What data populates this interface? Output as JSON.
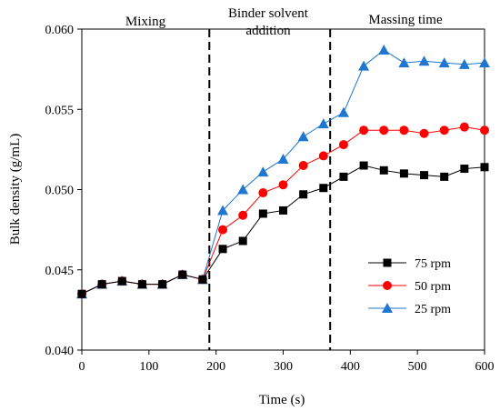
{
  "chart_data": {
    "type": "line",
    "xlabel": "Time (s)",
    "ylabel": "Bulk density (g/mL)",
    "xlim": [
      0,
      600
    ],
    "ylim": [
      0.04,
      0.06
    ],
    "xticks": [
      "0",
      "100",
      "200",
      "300",
      "400",
      "500",
      "600"
    ],
    "yticks": [
      "0.040",
      "0.045",
      "0.050",
      "0.055",
      "0.060"
    ],
    "grid": false,
    "legend_position": "bottom-right",
    "phase_dividers": [
      190,
      370
    ],
    "phases": [
      "Mixing",
      "Binder solvent",
      "addition",
      "Massing time"
    ],
    "x": [
      0,
      30,
      60,
      90,
      120,
      150,
      180,
      210,
      240,
      270,
      300,
      330,
      360,
      390,
      420,
      450,
      480,
      510,
      540,
      570,
      600
    ],
    "series": [
      {
        "name": "75 rpm",
        "color": "#000000",
        "marker": "square",
        "values": [
          0.0435,
          0.0441,
          0.0443,
          0.0441,
          0.0441,
          0.0447,
          0.0444,
          0.0463,
          0.0468,
          0.0485,
          0.0487,
          0.0497,
          0.0501,
          0.0508,
          0.0515,
          0.0512,
          0.051,
          0.0509,
          0.0508,
          0.0513,
          0.0514
        ]
      },
      {
        "name": "50 rpm",
        "color": "#ff0000",
        "marker": "circle",
        "values": [
          0.0435,
          0.0441,
          0.0443,
          0.0441,
          0.0441,
          0.0447,
          0.0444,
          0.0475,
          0.0484,
          0.0498,
          0.0503,
          0.0515,
          0.0521,
          0.0528,
          0.0537,
          0.0537,
          0.0537,
          0.0535,
          0.0537,
          0.0539,
          0.0537
        ]
      },
      {
        "name": "25 rpm",
        "color": "#1f77d0",
        "marker": "triangle",
        "values": [
          0.0435,
          0.0441,
          0.0443,
          0.0441,
          0.0441,
          0.0447,
          0.0444,
          0.0487,
          0.05,
          0.0511,
          0.0519,
          0.0533,
          0.0541,
          0.0548,
          0.0577,
          0.0587,
          0.0579,
          0.058,
          0.0579,
          0.0578,
          0.0579
        ]
      }
    ]
  }
}
